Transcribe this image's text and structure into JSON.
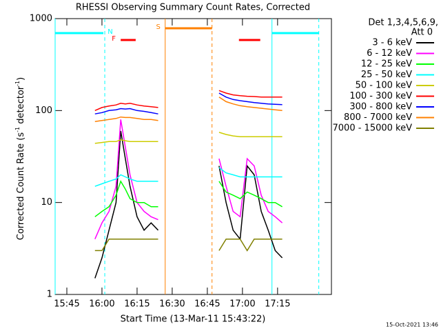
{
  "chart_data": {
    "type": "line",
    "title": "RHESSI Observing Summary Count Rates, Corrected",
    "xlabel": "Start Time (13-Mar-11 15:43:22)",
    "ylabel": [
      "Corrected Count Rate (s",
      "-1",
      " detector",
      "-1",
      ")"
    ],
    "legend_header": [
      "Det 1,3,4,5,6,9,",
      "Att 0"
    ],
    "timestamp": "15-Oct-2021 13:46",
    "log_y": true,
    "xlim": [
      940,
      1058
    ],
    "ylim": [
      1,
      1000
    ],
    "xticks": [
      {
        "value": 945,
        "label": "15:45"
      },
      {
        "value": 960,
        "label": "16:00"
      },
      {
        "value": 975,
        "label": "16:15"
      },
      {
        "value": 990,
        "label": "16:30"
      },
      {
        "value": 1005,
        "label": "16:45"
      },
      {
        "value": 1020,
        "label": "17:00"
      },
      {
        "value": 1035,
        "label": "17:15"
      }
    ],
    "yticks": [
      1,
      10,
      100,
      1000
    ],
    "x": [
      957,
      960,
      963,
      966,
      968,
      970,
      972,
      975,
      978,
      981,
      984,
      996,
      1010,
      1013,
      1016,
      1019,
      1022,
      1025,
      1028,
      1031,
      1034,
      1037
    ],
    "series": [
      {
        "name": "3 - 6 keV",
        "color": "#000000",
        "values": [
          1.5,
          2.5,
          5,
          10,
          60,
          30,
          15,
          7,
          5,
          6,
          5,
          null,
          25,
          10,
          5,
          4,
          25,
          20,
          8,
          5,
          3,
          2.5
        ]
      },
      {
        "name": "6 - 12 keV",
        "color": "#ff00ff",
        "values": [
          4,
          6,
          8,
          15,
          80,
          40,
          20,
          10,
          8,
          7,
          6.5,
          null,
          30,
          15,
          8,
          7,
          30,
          25,
          12,
          8,
          7,
          6
        ]
      },
      {
        "name": "12 - 25 keV",
        "color": "#00ff00",
        "values": [
          7,
          8,
          9,
          12,
          17,
          14,
          11,
          10,
          10,
          9,
          9,
          null,
          17,
          13,
          12,
          11,
          13,
          12,
          11,
          10,
          10,
          9
        ]
      },
      {
        "name": "25 - 50 keV",
        "color": "#00ffff",
        "values": [
          15,
          16,
          17,
          18,
          20,
          19,
          18,
          17,
          17,
          17,
          17,
          null,
          24,
          21,
          20,
          19,
          19,
          19,
          19,
          19,
          19,
          19
        ]
      },
      {
        "name": "50 - 100 keV",
        "color": "#cccc00",
        "values": [
          44,
          45,
          46,
          46,
          48,
          47,
          46,
          46,
          46,
          46,
          46,
          null,
          58,
          55,
          53,
          52,
          52,
          52,
          52,
          52,
          52,
          52
        ]
      },
      {
        "name": "100 - 300 keV",
        "color": "#ff0000",
        "values": [
          100,
          108,
          112,
          115,
          120,
          118,
          120,
          115,
          112,
          110,
          108,
          null,
          165,
          155,
          148,
          145,
          143,
          142,
          140,
          140,
          140,
          140
        ]
      },
      {
        "name": "300 - 800 keV",
        "color": "#0000ff",
        "values": [
          92,
          95,
          100,
          102,
          105,
          104,
          105,
          100,
          98,
          95,
          92,
          null,
          155,
          140,
          132,
          128,
          125,
          122,
          120,
          118,
          117,
          116
        ]
      },
      {
        "name": "800 - 7000 keV",
        "color": "#ff8000",
        "values": [
          76,
          78,
          80,
          82,
          85,
          84,
          84,
          82,
          80,
          80,
          78,
          null,
          140,
          125,
          118,
          113,
          110,
          108,
          106,
          104,
          102,
          100
        ]
      },
      {
        "name": "7000 - 15000 keV",
        "color": "#808000",
        "values": [
          3,
          3,
          4,
          4,
          4,
          4,
          4,
          4,
          4,
          4,
          4,
          null,
          3,
          4,
          4,
          4,
          3,
          4,
          4,
          4,
          4,
          4
        ]
      }
    ],
    "flags": [
      {
        "label": "N",
        "color": "#00ffff",
        "spans": [
          [
            940,
            960.6
          ],
          [
            1032.6,
            1052.6
          ]
        ]
      },
      {
        "label": "F",
        "color": "#ff0000",
        "spans": [
          [
            968,
            974.4
          ],
          [
            1018.5,
            1027.6
          ]
        ]
      },
      {
        "label": "S",
        "color": "#ff8000",
        "spans": [
          [
            987,
            1007
          ]
        ]
      }
    ],
    "markers": [
      {
        "x": 940,
        "color": "#00ffff",
        "style": "solid"
      },
      {
        "x": 961.2,
        "color": "#00ffff",
        "style": "dashed"
      },
      {
        "x": 1032.6,
        "color": "#00ffff",
        "style": "solid"
      },
      {
        "x": 1052.6,
        "color": "#00ffff",
        "style": "dashed"
      },
      {
        "x": 987,
        "color": "#ff8000",
        "style": "solid"
      },
      {
        "x": 1007,
        "color": "#ff8000",
        "style": "dashed"
      }
    ]
  }
}
